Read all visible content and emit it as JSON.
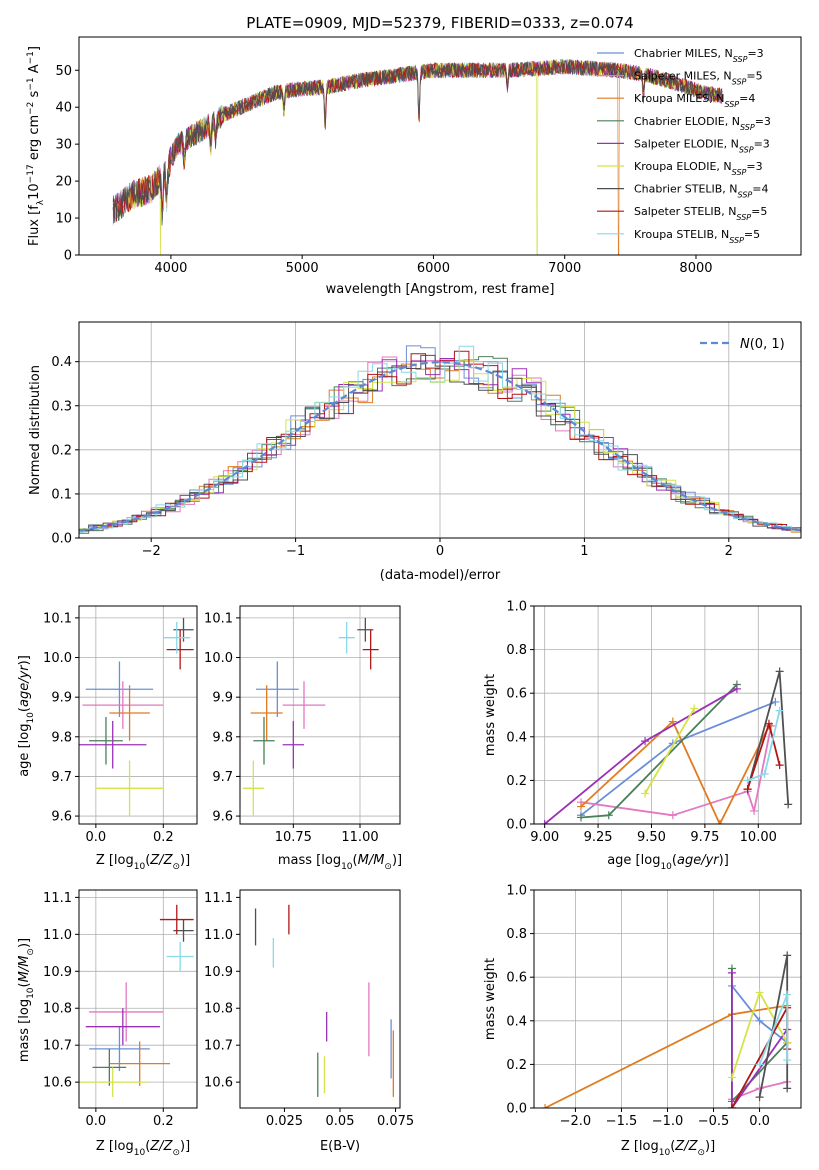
{
  "title": "PLATE=0909, MJD=52379, FIBERID=0333, z=0.074",
  "colors": [
    "#6a8fd9",
    "#e377c2",
    "#e07b20",
    "#4a7f5a",
    "#9b30b8",
    "#d4e34a",
    "#505050",
    "#b01616",
    "#88d8e8"
  ],
  "legend": [
    {
      "text": "Chabrier MILES, N",
      "sub": "SSP",
      "suffix": "=3"
    },
    {
      "text": "Salpeter MILES, N",
      "sub": "SSP",
      "suffix": "=5"
    },
    {
      "text": "Kroupa MILES, N",
      "sub": "SSP",
      "suffix": "=4"
    },
    {
      "text": "Chabrier ELODIE, N",
      "sub": "SSP",
      "suffix": "=3"
    },
    {
      "text": "Salpeter ELODIE, N",
      "sub": "SSP",
      "suffix": "=3"
    },
    {
      "text": "Kroupa ELODIE, N",
      "sub": "SSP",
      "suffix": "=3"
    },
    {
      "text": "Chabrier STELIB, N",
      "sub": "SSP",
      "suffix": "=4"
    },
    {
      "text": "Salpeter STELIB, N",
      "sub": "SSP",
      "suffix": "=5"
    },
    {
      "text": "Kroupa STELIB, N",
      "sub": "SSP",
      "suffix": "=5"
    }
  ],
  "chart_data": [
    {
      "id": "spectrum",
      "type": "line",
      "xlabel": "wavelength [Angstrom, rest frame]",
      "ylabel": "Flux [f_λ 10^-17 erg cm^-2 s^-1 A^-1]",
      "xlim": [
        3300,
        8800
      ],
      "ylim": [
        0,
        59
      ],
      "xticks": [
        4000,
        5000,
        6000,
        7000,
        8000
      ],
      "yticks": [
        0,
        10,
        20,
        30,
        40,
        50
      ],
      "grid": false,
      "legend_position": "right",
      "continuum": [
        [
          3560,
          12
        ],
        [
          3700,
          16
        ],
        [
          3850,
          18
        ],
        [
          3950,
          22
        ],
        [
          4050,
          30
        ],
        [
          4200,
          33
        ],
        [
          4400,
          38
        ],
        [
          4600,
          41
        ],
        [
          4800,
          44
        ],
        [
          5000,
          45
        ],
        [
          5200,
          45.5
        ],
        [
          5400,
          47
        ],
        [
          5600,
          48
        ],
        [
          5800,
          49
        ],
        [
          6000,
          50
        ],
        [
          6200,
          50
        ],
        [
          6400,
          50
        ],
        [
          6600,
          50
        ],
        [
          6800,
          50.5
        ],
        [
          7000,
          51
        ],
        [
          7200,
          50.5
        ],
        [
          7400,
          50
        ],
        [
          7600,
          49
        ],
        [
          7800,
          47
        ],
        [
          8050,
          44
        ],
        [
          8200,
          43
        ]
      ],
      "absorption_features": [
        [
          3934,
          -10
        ],
        [
          3969,
          -8
        ],
        [
          4101,
          -5
        ],
        [
          4304,
          -6
        ],
        [
          4341,
          -5
        ],
        [
          4861,
          -5
        ],
        [
          5175,
          -10
        ],
        [
          5890,
          -12
        ],
        [
          6563,
          -4
        ],
        [
          7600,
          -6
        ]
      ],
      "dropouts": [
        {
          "series": 5,
          "x": 3920
        },
        {
          "series": 5,
          "x": 6790
        },
        {
          "series": 2,
          "x": 7410
        }
      ]
    },
    {
      "id": "residuals",
      "type": "step",
      "xlabel": "(data-model)/error",
      "ylabel": "Normed distribution",
      "xlim": [
        -2.5,
        2.5
      ],
      "ylim": [
        0,
        0.49
      ],
      "xticks": [
        -2,
        -1,
        0,
        1,
        2
      ],
      "yticks": [
        0.0,
        0.1,
        0.2,
        0.3,
        0.4
      ],
      "grid": true,
      "legend_position": "upper right",
      "gaussian_label": "N(0, 1)",
      "bin_width": 0.1
    },
    {
      "id": "age-vs-Z",
      "type": "errorbar",
      "xlabel": "Z [log10(Z/Z⊙)]",
      "ylabel": "age  [log10(age/yr)]",
      "xlim": [
        -0.05,
        0.3
      ],
      "ylim": [
        9.58,
        10.13
      ],
      "xticks": [
        0.0,
        0.2
      ],
      "yticks": [
        9.6,
        9.7,
        9.8,
        9.9,
        10.0,
        10.1
      ],
      "grid": true,
      "points": [
        {
          "series": 0,
          "x": 0.07,
          "y": 9.92,
          "xerr": 0.1,
          "yerr": 0.07
        },
        {
          "series": 1,
          "x": 0.08,
          "y": 9.88,
          "xerr": 0.12,
          "yerr": 0.06
        },
        {
          "series": 2,
          "x": 0.1,
          "y": 9.86,
          "xerr": 0.06,
          "yerr": 0.07
        },
        {
          "series": 3,
          "x": 0.03,
          "y": 9.79,
          "xerr": 0.05,
          "yerr": 0.06
        },
        {
          "series": 4,
          "x": 0.05,
          "y": 9.78,
          "xerr": 0.1,
          "yerr": 0.06
        },
        {
          "series": 5,
          "x": 0.1,
          "y": 9.67,
          "xerr": 0.1,
          "yerr": 0.07
        },
        {
          "series": 6,
          "x": 0.26,
          "y": 10.07,
          "xerr": 0.03,
          "yerr": 0.03
        },
        {
          "series": 7,
          "x": 0.25,
          "y": 10.02,
          "xerr": 0.04,
          "yerr": 0.05
        },
        {
          "series": 8,
          "x": 0.24,
          "y": 10.05,
          "xerr": 0.04,
          "yerr": 0.04
        }
      ]
    },
    {
      "id": "age-vs-mass",
      "type": "errorbar",
      "xlabel": "mass [log10(M/M⊙)]",
      "ylabel": "",
      "xlim": [
        10.55,
        11.15
      ],
      "ylim": [
        9.58,
        10.13
      ],
      "xticks": [
        10.75,
        11.0
      ],
      "yticks": [
        9.6,
        9.7,
        9.8,
        9.9,
        10.0,
        10.1
      ],
      "grid": true,
      "points": [
        {
          "series": 0,
          "x": 10.69,
          "y": 9.92,
          "xerr": 0.08,
          "yerr": 0.07
        },
        {
          "series": 1,
          "x": 10.79,
          "y": 9.88,
          "xerr": 0.08,
          "yerr": 0.06
        },
        {
          "series": 2,
          "x": 10.65,
          "y": 9.86,
          "xerr": 0.06,
          "yerr": 0.07
        },
        {
          "series": 3,
          "x": 10.64,
          "y": 9.79,
          "xerr": 0.04,
          "yerr": 0.06
        },
        {
          "series": 4,
          "x": 10.75,
          "y": 9.78,
          "xerr": 0.04,
          "yerr": 0.06
        },
        {
          "series": 5,
          "x": 10.6,
          "y": 9.67,
          "xerr": 0.04,
          "yerr": 0.07
        },
        {
          "series": 6,
          "x": 11.02,
          "y": 10.07,
          "xerr": 0.03,
          "yerr": 0.03
        },
        {
          "series": 7,
          "x": 11.04,
          "y": 10.02,
          "xerr": 0.03,
          "yerr": 0.05
        },
        {
          "series": 8,
          "x": 10.95,
          "y": 10.05,
          "xerr": 0.03,
          "yerr": 0.04
        }
      ]
    },
    {
      "id": "weight-vs-age",
      "type": "line",
      "xlabel": "age  [log10(age/yr)]",
      "ylabel": "mass weight",
      "xlim": [
        8.95,
        10.2
      ],
      "ylim": [
        0,
        1.0
      ],
      "xticks": [
        9.0,
        9.25,
        9.5,
        9.75,
        10.0
      ],
      "yticks": [
        0.0,
        0.2,
        0.4,
        0.6,
        0.8,
        1.0
      ],
      "grid": true,
      "series": [
        {
          "series": 0,
          "points": [
            [
              9.17,
              0.04
            ],
            [
              9.6,
              0.37
            ],
            [
              10.08,
              0.56
            ]
          ]
        },
        {
          "series": 1,
          "points": [
            [
              9.17,
              0.1
            ],
            [
              9.6,
              0.04
            ],
            [
              9.95,
              0.15
            ],
            [
              9.98,
              0.06
            ],
            [
              10.06,
              0.45
            ]
          ]
        },
        {
          "series": 2,
          "points": [
            [
              9.17,
              0.08
            ],
            [
              9.6,
              0.47
            ],
            [
              9.82,
              0.0
            ],
            [
              10.05,
              0.45
            ]
          ]
        },
        {
          "series": 3,
          "points": [
            [
              9.17,
              0.03
            ],
            [
              9.3,
              0.04
            ],
            [
              9.9,
              0.64
            ]
          ]
        },
        {
          "series": 4,
          "points": [
            [
              9.0,
              0.0
            ],
            [
              9.47,
              0.38
            ],
            [
              9.9,
              0.62
            ]
          ]
        },
        {
          "series": 5,
          "points": [
            [
              9.47,
              0.14
            ],
            [
              9.7,
              0.53
            ]
          ]
        },
        {
          "series": 6,
          "points": [
            [
              9.95,
              0.16
            ],
            [
              10.1,
              0.7
            ],
            [
              10.14,
              0.09
            ]
          ]
        },
        {
          "series": 7,
          "points": [
            [
              9.95,
              0.16
            ],
            [
              10.05,
              0.46
            ],
            [
              10.1,
              0.27
            ]
          ]
        },
        {
          "series": 8,
          "points": [
            [
              9.95,
              0.2
            ],
            [
              10.03,
              0.23
            ],
            [
              10.1,
              0.52
            ]
          ]
        }
      ]
    },
    {
      "id": "mass-vs-Z",
      "type": "errorbar",
      "xlabel": "Z [log10(Z/Z⊙)]",
      "ylabel": "mass [log10(M/M⊙)]",
      "xlim": [
        -0.05,
        0.3
      ],
      "ylim": [
        10.53,
        11.12
      ],
      "xticks": [
        0.0,
        0.2
      ],
      "yticks": [
        10.6,
        10.7,
        10.8,
        10.9,
        11.0,
        11.1
      ],
      "grid": true,
      "points": [
        {
          "series": 0,
          "x": 0.07,
          "y": 10.69,
          "xerr": 0.09,
          "yerr": 0.06
        },
        {
          "series": 1,
          "x": 0.09,
          "y": 10.79,
          "xerr": 0.11,
          "yerr": 0.08
        },
        {
          "series": 2,
          "x": 0.13,
          "y": 10.65,
          "xerr": 0.09,
          "yerr": 0.06
        },
        {
          "series": 3,
          "x": 0.04,
          "y": 10.64,
          "xerr": 0.05,
          "yerr": 0.05
        },
        {
          "series": 4,
          "x": 0.08,
          "y": 10.75,
          "xerr": 0.11,
          "yerr": 0.05
        },
        {
          "series": 5,
          "x": 0.05,
          "y": 10.6,
          "xerr": 0.1,
          "yerr": 0.04
        },
        {
          "series": 6,
          "x": 0.26,
          "y": 11.01,
          "xerr": 0.03,
          "yerr": 0.03
        },
        {
          "series": 7,
          "x": 0.24,
          "y": 11.04,
          "xerr": 0.05,
          "yerr": 0.04
        },
        {
          "series": 8,
          "x": 0.25,
          "y": 10.94,
          "xerr": 0.04,
          "yerr": 0.04
        }
      ]
    },
    {
      "id": "mass-vs-ebv",
      "type": "errorbar",
      "xlabel": "E(B-V)",
      "ylabel": "",
      "xlim": [
        0.005,
        0.077
      ],
      "ylim": [
        10.53,
        11.12
      ],
      "xticks": [
        0.025,
        0.05,
        0.075
      ],
      "yticks": [
        10.6,
        10.7,
        10.8,
        10.9,
        11.0,
        11.1
      ],
      "grid": false,
      "points": [
        {
          "series": 0,
          "x": 0.073,
          "y": 10.69,
          "yerr": 0.08
        },
        {
          "series": 1,
          "x": 0.063,
          "y": 10.77,
          "yerr": 0.1
        },
        {
          "series": 2,
          "x": 0.074,
          "y": 10.65,
          "yerr": 0.09
        },
        {
          "series": 3,
          "x": 0.04,
          "y": 10.62,
          "yerr": 0.06
        },
        {
          "series": 4,
          "x": 0.044,
          "y": 10.75,
          "yerr": 0.04
        },
        {
          "series": 5,
          "x": 0.043,
          "y": 10.62,
          "yerr": 0.05
        },
        {
          "series": 6,
          "x": 0.012,
          "y": 11.02,
          "yerr": 0.05
        },
        {
          "series": 7,
          "x": 0.027,
          "y": 11.04,
          "yerr": 0.04
        },
        {
          "series": 8,
          "x": 0.02,
          "y": 10.95,
          "yerr": 0.04
        }
      ]
    },
    {
      "id": "weight-vs-Z",
      "type": "line",
      "xlabel": "Z [log10(Z/Z⊙)]",
      "ylabel": "mass weight",
      "xlim": [
        -2.45,
        0.45
      ],
      "ylim": [
        0,
        1.0
      ],
      "xticks": [
        -2.0,
        -1.5,
        -1.0,
        -0.5,
        0.0
      ],
      "yticks": [
        0.0,
        0.2,
        0.4,
        0.6,
        0.8,
        1.0
      ],
      "grid": true,
      "series": [
        {
          "series": 0,
          "points": [
            [
              -0.3,
              0.56
            ],
            [
              0.0,
              0.4
            ],
            [
              0.3,
              0.3
            ]
          ]
        },
        {
          "series": 1,
          "points": [
            [
              -0.3,
              0.04
            ],
            [
              0.0,
              0.09
            ],
            [
              0.3,
              0.12
            ]
          ]
        },
        {
          "series": 2,
          "points": [
            [
              -2.33,
              0.0
            ],
            [
              -0.3,
              0.43
            ],
            [
              0.3,
              0.47
            ]
          ]
        },
        {
          "series": 3,
          "points": [
            [
              -0.3,
              0.64
            ],
            [
              -0.3,
              0.03
            ],
            [
              0.3,
              0.3
            ]
          ]
        },
        {
          "series": 4,
          "points": [
            [
              -0.3,
              0.62
            ],
            [
              -0.3,
              0.0
            ],
            [
              0.3,
              0.36
            ]
          ]
        },
        {
          "series": 5,
          "points": [
            [
              -0.3,
              0.14
            ],
            [
              0.0,
              0.53
            ],
            [
              0.3,
              0.3
            ]
          ]
        },
        {
          "series": 6,
          "points": [
            [
              0.0,
              0.05
            ],
            [
              0.3,
              0.7
            ],
            [
              0.3,
              0.09
            ]
          ]
        },
        {
          "series": 7,
          "points": [
            [
              -0.3,
              0.0
            ],
            [
              0.3,
              0.46
            ],
            [
              0.3,
              0.27
            ]
          ]
        },
        {
          "series": 8,
          "points": [
            [
              0.0,
              0.2
            ],
            [
              0.3,
              0.52
            ],
            [
              0.3,
              0.22
            ]
          ]
        }
      ]
    }
  ]
}
